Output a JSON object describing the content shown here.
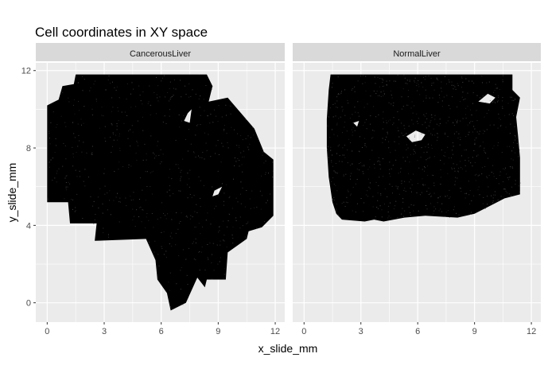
{
  "chart_data": {
    "type": "scatter",
    "title": "Cell coordinates in XY space",
    "xlabel": "x_slide_mm",
    "ylabel": "y_slide_mm",
    "xlim": [
      -0.6,
      12.5
    ],
    "ylim": [
      -1.0,
      12.4
    ],
    "x_ticks": [
      0,
      3,
      6,
      9,
      12
    ],
    "y_ticks": [
      0,
      4,
      8,
      12
    ],
    "x_tick_labels": [
      "0",
      "3",
      "6",
      "9",
      "12"
    ],
    "y_tick_labels": [
      "0",
      "4",
      "8",
      "12"
    ],
    "grid": true,
    "legend": "none",
    "point_color": "#000000",
    "panel_background": "#ebebeb",
    "strip_background": "#d9d9d9",
    "panels": [
      {
        "name": "CancerousLiver",
        "outline": [
          [
            1.5,
            11.8
          ],
          [
            8.4,
            11.8
          ],
          [
            8.7,
            11.2
          ],
          [
            8.5,
            10.4
          ],
          [
            9.5,
            10.6
          ],
          [
            10.9,
            9.0
          ],
          [
            11.4,
            7.8
          ],
          [
            11.9,
            7.4
          ],
          [
            11.9,
            4.5
          ],
          [
            11.3,
            3.9
          ],
          [
            10.6,
            3.7
          ],
          [
            10.5,
            3.3
          ],
          [
            9.5,
            2.6
          ],
          [
            9.4,
            1.2
          ],
          [
            8.4,
            1.2
          ],
          [
            8.3,
            0.8
          ],
          [
            7.9,
            1.3
          ],
          [
            7.3,
            0.0
          ],
          [
            6.5,
            -0.4
          ],
          [
            6.3,
            0.5
          ],
          [
            5.8,
            1.2
          ],
          [
            5.7,
            2.2
          ],
          [
            5.2,
            3.3
          ],
          [
            2.5,
            3.2
          ],
          [
            2.6,
            4.1
          ],
          [
            1.2,
            4.1
          ],
          [
            1.1,
            5.2
          ],
          [
            0.0,
            5.2
          ],
          [
            0.0,
            10.2
          ],
          [
            0.6,
            10.5
          ],
          [
            0.8,
            11.2
          ],
          [
            1.4,
            11.3
          ]
        ],
        "holes": [
          [
            [
              7.4,
              9.8
            ],
            [
              7.6,
              10.0
            ],
            [
              7.5,
              9.3
            ],
            [
              7.2,
              9.4
            ]
          ],
          [
            [
              8.8,
              5.8
            ],
            [
              9.2,
              6.0
            ],
            [
              9.0,
              5.6
            ],
            [
              8.7,
              5.5
            ]
          ]
        ]
      },
      {
        "name": "NormalLiver",
        "outline": [
          [
            1.4,
            11.8
          ],
          [
            11.0,
            11.8
          ],
          [
            11.0,
            11.0
          ],
          [
            11.4,
            10.6
          ],
          [
            11.2,
            9.6
          ],
          [
            11.3,
            8.6
          ],
          [
            11.4,
            7.5
          ],
          [
            11.4,
            5.6
          ],
          [
            10.6,
            5.4
          ],
          [
            9.6,
            4.9
          ],
          [
            9.0,
            4.6
          ],
          [
            8.1,
            4.4
          ],
          [
            6.4,
            4.5
          ],
          [
            5.3,
            4.4
          ],
          [
            4.2,
            4.2
          ],
          [
            3.7,
            4.3
          ],
          [
            3.2,
            4.2
          ],
          [
            2.0,
            4.3
          ],
          [
            1.7,
            4.6
          ],
          [
            1.5,
            5.2
          ],
          [
            1.3,
            6.5
          ],
          [
            1.2,
            8.0
          ],
          [
            1.2,
            9.5
          ],
          [
            1.3,
            11.0
          ]
        ],
        "holes": [
          [
            [
              5.4,
              8.6
            ],
            [
              5.9,
              8.9
            ],
            [
              6.4,
              8.7
            ],
            [
              6.2,
              8.4
            ],
            [
              5.7,
              8.3
            ]
          ],
          [
            [
              9.2,
              10.4
            ],
            [
              9.7,
              10.8
            ],
            [
              10.1,
              10.6
            ],
            [
              9.8,
              10.3
            ]
          ],
          [
            [
              2.6,
              9.3
            ],
            [
              2.9,
              9.4
            ],
            [
              2.8,
              9.1
            ]
          ]
        ]
      }
    ]
  }
}
